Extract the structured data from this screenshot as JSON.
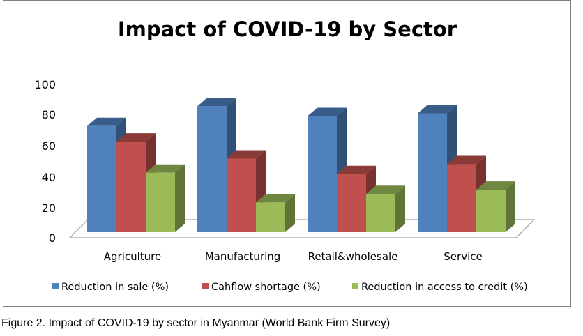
{
  "chart_data": {
    "type": "bar",
    "title": "Impact of COVID-19 by Sector",
    "categories": [
      "Agriculture",
      "Manufacturing",
      "Retail&wholesale",
      "Service"
    ],
    "series": [
      {
        "name": "Reduction in sale (%)",
        "values": [
          75,
          89,
          82,
          84
        ],
        "color": "#4F81BD"
      },
      {
        "name": "Cahflow shortage (%)",
        "values": [
          64,
          52,
          41,
          48
        ],
        "color": "#C0504D"
      },
      {
        "name": "Reduction in access to credit (%)",
        "values": [
          42,
          21,
          27,
          30
        ],
        "color": "#9BBB59"
      }
    ],
    "ylim": [
      0,
      100
    ],
    "yticks": [
      "0",
      "20",
      "40",
      "60",
      "80",
      "100"
    ],
    "xlabel": "",
    "ylabel": "",
    "grid": false,
    "legend_position": "bottom"
  },
  "caption": "Figure 2. Impact of COVID-19 by sector in Myanmar (World Bank Firm Survey)"
}
